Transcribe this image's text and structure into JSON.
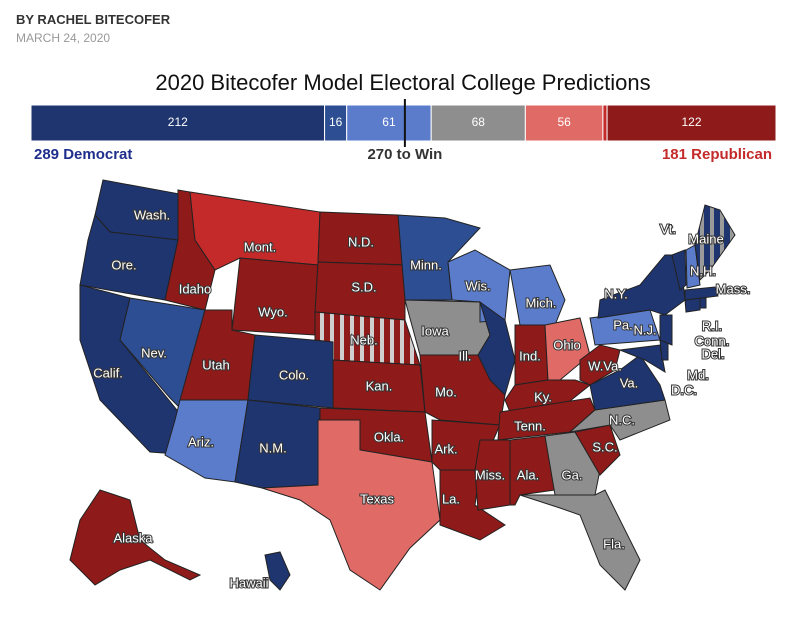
{
  "byline": "BY RACHEL BITECOFER",
  "date": "MARCH 24, 2020",
  "chart_data": {
    "type": "stacked-bar",
    "title": "2020 Bitecofer Model Electoral College Predictions",
    "values": [
      212,
      16,
      61,
      68,
      56,
      3,
      122
    ],
    "colors": [
      "#1f3570",
      "#2d4e93",
      "#5a7ccb",
      "#8e8e8e",
      "#e06b66",
      "#c42a2a",
      "#8e1a1a"
    ],
    "xlim": [
      0,
      538
    ],
    "marker": {
      "value": 270,
      "label": "270 to Win"
    },
    "left_label": "289 Democrat",
    "right_label": "181 Republican"
  },
  "map": {
    "states": [
      {
        "label": "Wash.",
        "color": "#1f3570"
      },
      {
        "label": "Ore.",
        "color": "#1f3570"
      },
      {
        "label": "Calif.",
        "color": "#1f3570"
      },
      {
        "label": "Nev.",
        "color": "#2d4e93"
      },
      {
        "label": "Idaho",
        "color": "#8e1a1a"
      },
      {
        "label": "Mont.",
        "color": "#c42a2a"
      },
      {
        "label": "Wyo.",
        "color": "#8e1a1a"
      },
      {
        "label": "Utah",
        "color": "#8e1a1a"
      },
      {
        "label": "Colo.",
        "color": "#1f3570"
      },
      {
        "label": "Ariz.",
        "color": "#5a7ccb"
      },
      {
        "label": "N.M.",
        "color": "#1f3570"
      },
      {
        "label": "N.D.",
        "color": "#8e1a1a"
      },
      {
        "label": "S.D.",
        "color": "#8e1a1a"
      },
      {
        "label": "Neb.",
        "color": "#8e1a1a",
        "stripe": "#cfcfcf"
      },
      {
        "label": "Kan.",
        "color": "#8e1a1a"
      },
      {
        "label": "Okla.",
        "color": "#8e1a1a"
      },
      {
        "label": "Texas",
        "color": "#e06b66"
      },
      {
        "label": "Minn.",
        "color": "#2d4e93"
      },
      {
        "label": "Iowa",
        "color": "#8e8e8e"
      },
      {
        "label": "Mo.",
        "color": "#8e1a1a"
      },
      {
        "label": "Ark.",
        "color": "#8e1a1a"
      },
      {
        "label": "La.",
        "color": "#8e1a1a"
      },
      {
        "label": "Wis.",
        "color": "#5a7ccb"
      },
      {
        "label": "Ill.",
        "color": "#1f3570"
      },
      {
        "label": "Mich.",
        "color": "#5a7ccb"
      },
      {
        "label": "Ind.",
        "color": "#8e1a1a"
      },
      {
        "label": "Ohio",
        "color": "#e06b66"
      },
      {
        "label": "Ky.",
        "color": "#8e1a1a"
      },
      {
        "label": "Tenn.",
        "color": "#8e1a1a"
      },
      {
        "label": "Miss.",
        "color": "#8e1a1a"
      },
      {
        "label": "Ala.",
        "color": "#8e1a1a"
      },
      {
        "label": "Ga.",
        "color": "#8e8e8e"
      },
      {
        "label": "Fla.",
        "color": "#8e8e8e"
      },
      {
        "label": "S.C.",
        "color": "#8e1a1a"
      },
      {
        "label": "N.C.",
        "color": "#8e8e8e"
      },
      {
        "label": "Va.",
        "color": "#1f3570"
      },
      {
        "label": "W.Va.",
        "color": "#8e1a1a"
      },
      {
        "label": "Pa.",
        "color": "#5a7ccb"
      },
      {
        "label": "N.Y.",
        "color": "#1f3570"
      },
      {
        "label": "Md.",
        "color": "#1f3570"
      },
      {
        "label": "Del.",
        "color": "#1f3570"
      },
      {
        "label": "N.J.",
        "color": "#1f3570"
      },
      {
        "label": "Conn.",
        "color": "#1f3570"
      },
      {
        "label": "R.I.",
        "color": "#1f3570"
      },
      {
        "label": "Mass.",
        "color": "#1f3570"
      },
      {
        "label": "Vt.",
        "color": "#1f3570"
      },
      {
        "label": "N.H.",
        "color": "#5a7ccb"
      },
      {
        "label": "Maine",
        "color": "#1f3570",
        "stripe": "#9a9a9a"
      },
      {
        "label": "Alaska",
        "color": "#8e1a1a"
      },
      {
        "label": "Hawaii",
        "color": "#1f3570"
      },
      {
        "label": "D.C.",
        "color": "#1f3570"
      }
    ]
  }
}
